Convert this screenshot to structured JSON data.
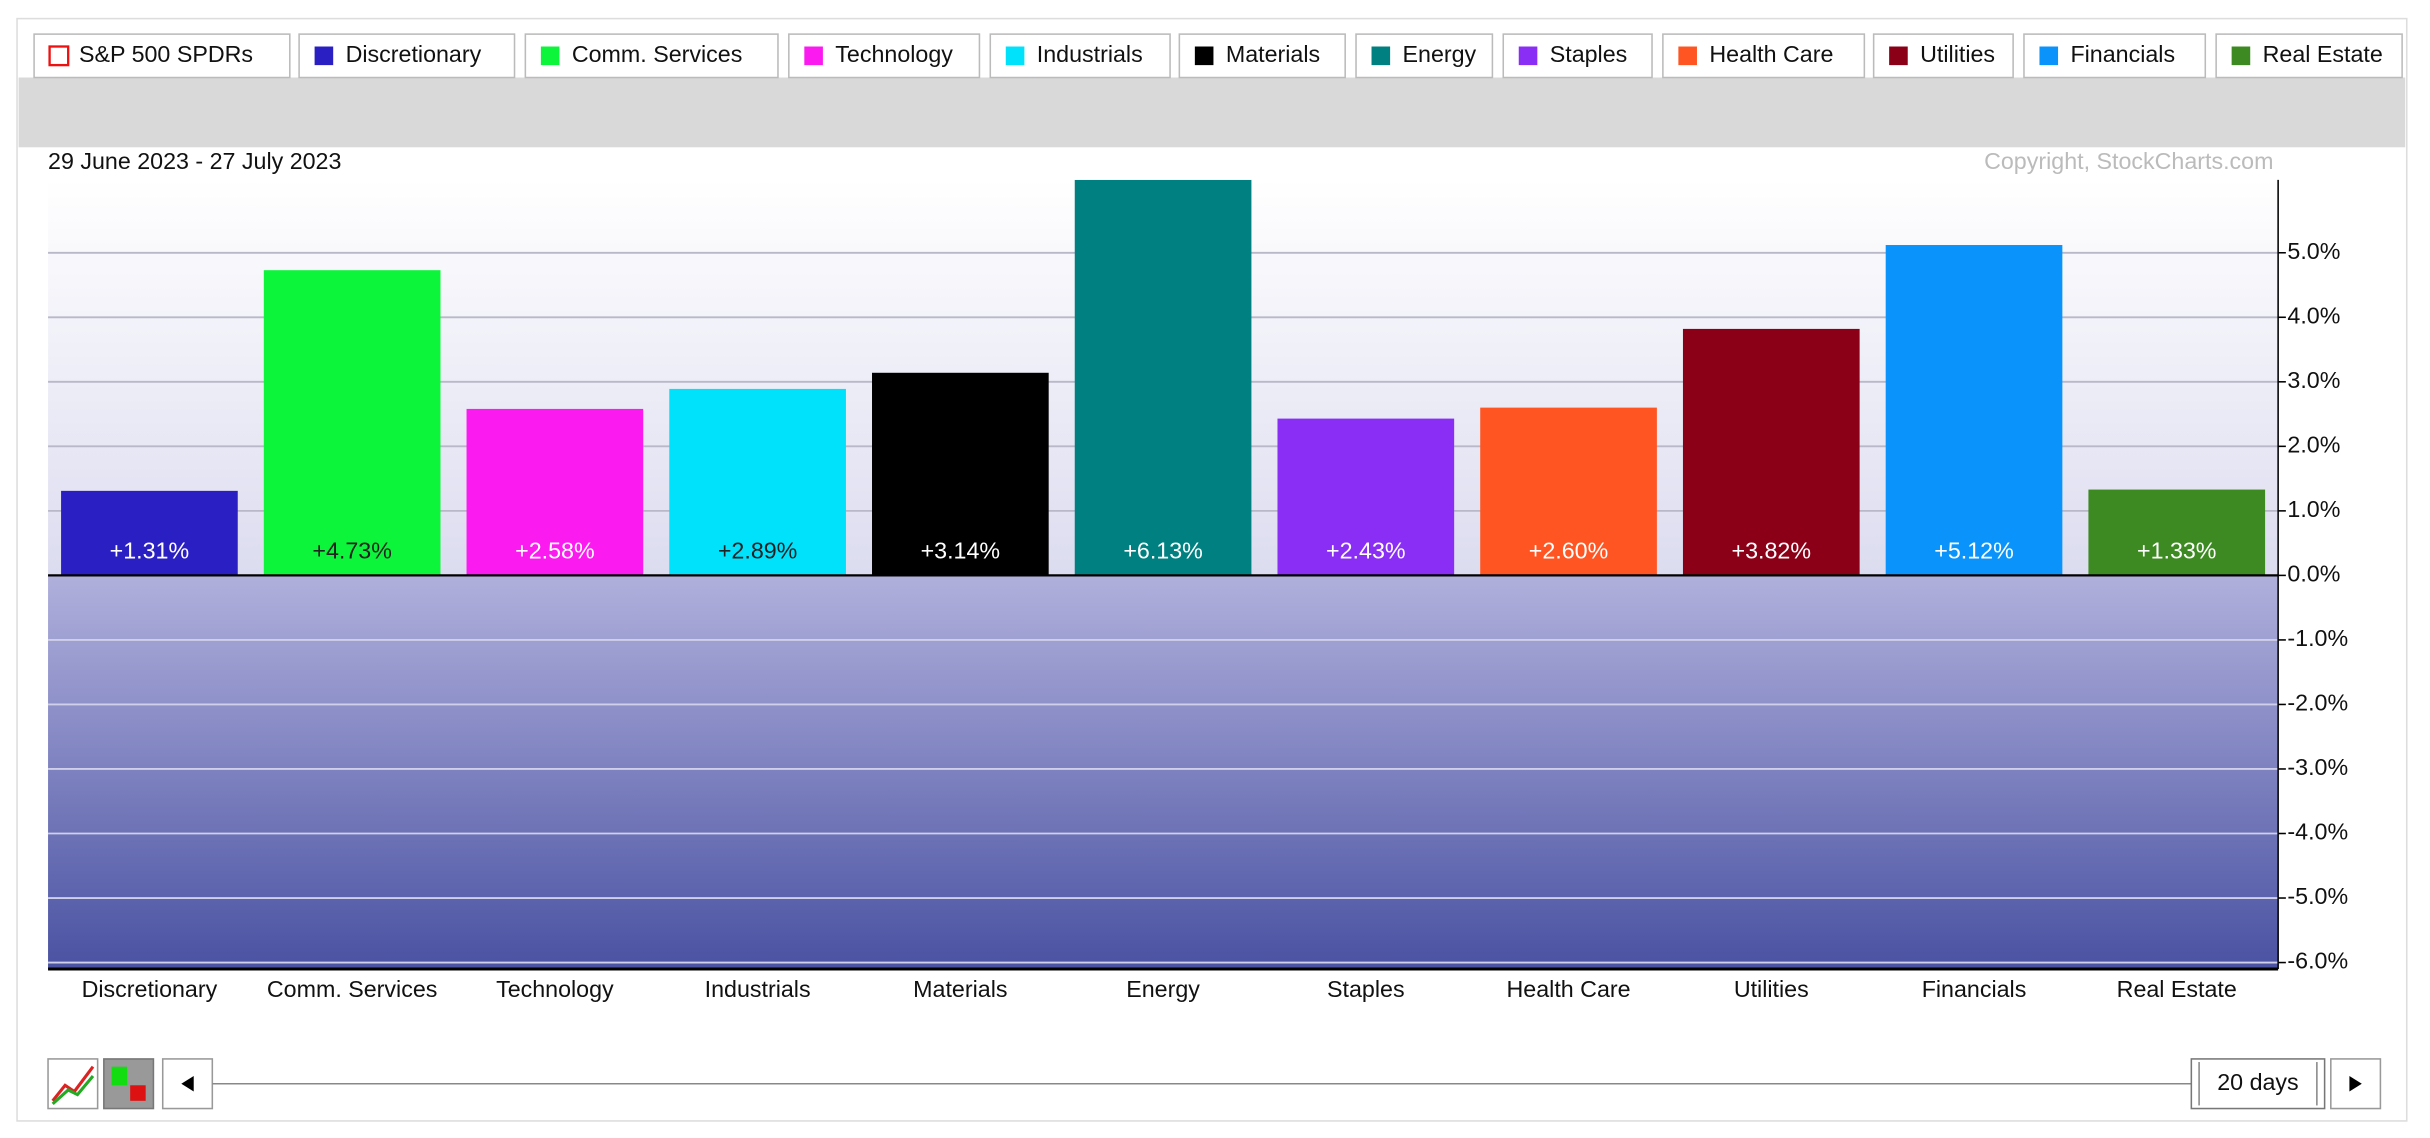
{
  "chart_data": {
    "type": "bar",
    "benchmark": "S&P 500 SPDRs",
    "date_range": "29 June 2023 - 27 July 2023",
    "copyright": "Copyright, StockCharts.com",
    "period": "20 days",
    "categories": [
      "Discretionary",
      "Comm. Services",
      "Technology",
      "Industrials",
      "Materials",
      "Energy",
      "Staples",
      "Health Care",
      "Utilities",
      "Financials",
      "Real Estate"
    ],
    "values": [
      1.31,
      4.73,
      2.58,
      2.89,
      3.14,
      6.13,
      2.43,
      2.6,
      3.82,
      5.12,
      1.33
    ],
    "value_labels": [
      "+1.31%",
      "+4.73%",
      "+2.58%",
      "+2.89%",
      "+3.14%",
      "+6.13%",
      "+2.43%",
      "+2.60%",
      "+3.82%",
      "+5.12%",
      "+1.33%"
    ],
    "colors": [
      "#2a1fc3",
      "#0cf53a",
      "#fb1af0",
      "#00e1fb",
      "#000000",
      "#008080",
      "#8a2ef5",
      "#ff5522",
      "#8b0016",
      "#0a94fb",
      "#3d8a22"
    ],
    "ylim": [
      -6.1,
      6.13
    ],
    "yticks": [
      {
        "value": 5,
        "label": "5.0%"
      },
      {
        "value": 4,
        "label": "4.0%"
      },
      {
        "value": 3,
        "label": "3.0%"
      },
      {
        "value": 2,
        "label": "2.0%"
      },
      {
        "value": 1,
        "label": "1.0%"
      },
      {
        "value": 0,
        "label": "0.0%"
      },
      {
        "value": -1,
        "label": "-1.0%"
      },
      {
        "value": -2,
        "label": "-2.0%"
      },
      {
        "value": -3,
        "label": "-3.0%"
      },
      {
        "value": -4,
        "label": "-4.0%"
      },
      {
        "value": -5,
        "label": "-5.0%"
      },
      {
        "value": -6,
        "label": "-6.0%"
      }
    ],
    "grid": true
  }
}
